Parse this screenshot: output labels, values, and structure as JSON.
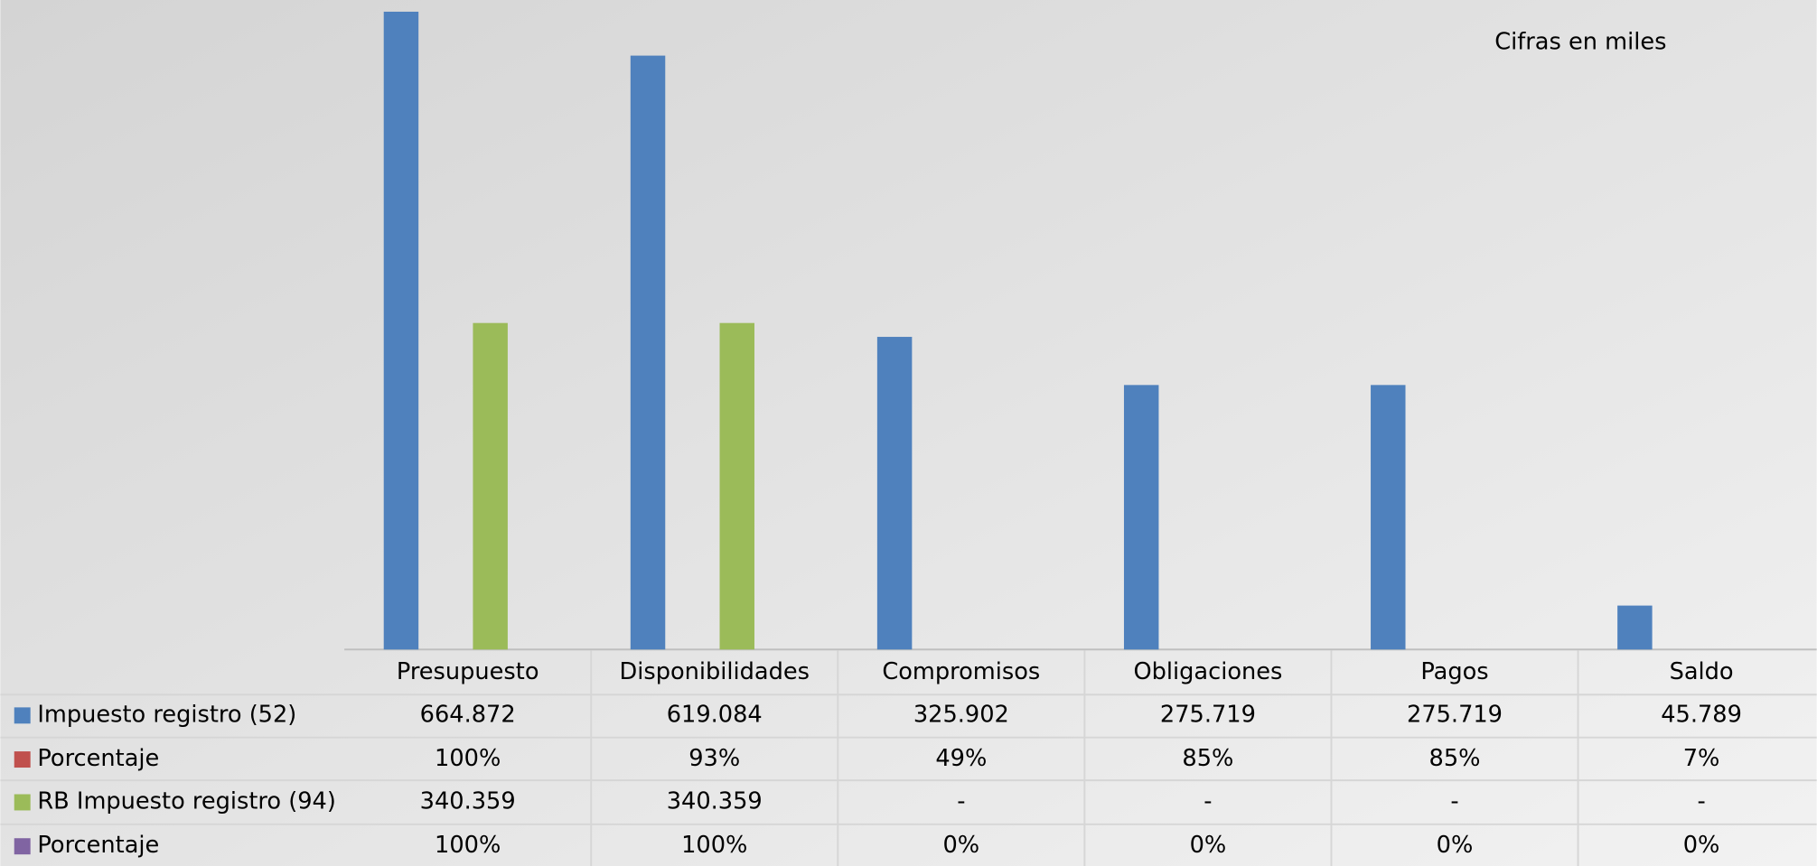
{
  "chart_data": {
    "type": "bar",
    "annotation": "Cifras en miles",
    "categories": [
      "Presupuesto",
      "Disponibilidades",
      "Compromisos",
      "Obligaciones",
      "Pagos",
      "Saldo"
    ],
    "ylim": [
      0,
      665000
    ],
    "series": [
      {
        "name": "Impuesto registro (52)",
        "color": "#4f81bd",
        "type": "bar",
        "values": [
          664872,
          619084,
          325902,
          275719,
          275719,
          45789
        ],
        "value_labels": [
          "664.872",
          "619.084",
          "325.902",
          "275.719",
          "275.719",
          "45.789"
        ]
      },
      {
        "name": "Porcentaje",
        "color": "#c0504d",
        "values": [
          100,
          93,
          49,
          85,
          85,
          7
        ],
        "value_labels": [
          "100%",
          "93%",
          "49%",
          "85%",
          "85%",
          "7%"
        ]
      },
      {
        "name": "RB Impuesto registro (94)",
        "color": "#9bbb59",
        "type": "bar",
        "values": [
          340359,
          340359,
          null,
          null,
          null,
          null
        ],
        "value_labels": [
          "340.359",
          "340.359",
          "-",
          "-",
          "-",
          "-"
        ]
      },
      {
        "name": "Porcentaje",
        "color": "#8064a2",
        "values": [
          100,
          100,
          0,
          0,
          0,
          0
        ],
        "value_labels": [
          "100%",
          "100%",
          "0%",
          "0%",
          "0%",
          "0%"
        ]
      }
    ]
  }
}
